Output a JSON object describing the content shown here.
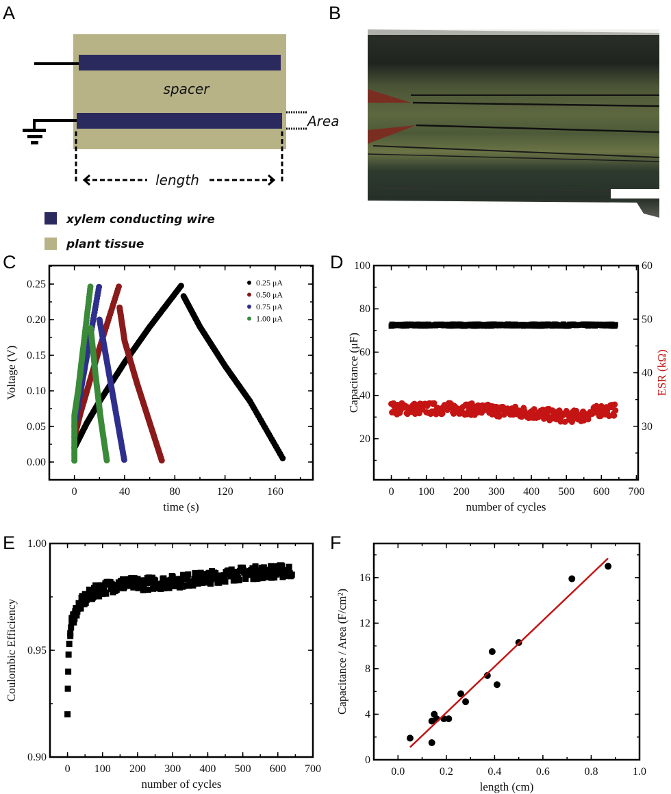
{
  "panels": {
    "A": {
      "label": "A",
      "spacer_label": "spacer",
      "area_label": "Area",
      "length_label": "length",
      "legend": [
        {
          "label": "xylem conducting wire",
          "color": "#2b2a5e"
        },
        {
          "label": "plant tissue",
          "color": "#b7b387"
        }
      ]
    },
    "B": {
      "label": "B",
      "scale_bar_color": "#ffffff"
    },
    "C": {
      "label": "C"
    },
    "D": {
      "label": "D"
    },
    "E": {
      "label": "E"
    },
    "F": {
      "label": "F"
    }
  },
  "chart_data": [
    {
      "panel": "C",
      "type": "scatter",
      "xlabel": "time (s)",
      "ylabel": "Voltage (V)",
      "xlim": [
        -20,
        190
      ],
      "ylim": [
        -0.025,
        0.276
      ],
      "xticks": [
        0,
        40,
        80,
        120,
        160
      ],
      "xtick_labels": [
        "0",
        "40",
        "80",
        "120",
        "160"
      ],
      "yticks": [
        0,
        0.05,
        0.1,
        0.15,
        0.2,
        0.25
      ],
      "ytick_labels": [
        "0.00",
        "0.05",
        "0.10",
        "0.15",
        "0.20",
        "0.25"
      ],
      "grid": false,
      "legend_position": "top-right",
      "series": [
        {
          "name": "0.25 μA",
          "color": "#000000",
          "charge": [
            [
              0,
              0.02
            ],
            [
              10,
              0.055
            ],
            [
              20,
              0.085
            ],
            [
              40,
              0.14
            ],
            [
              60,
              0.19
            ],
            [
              86,
              0.25
            ]
          ],
          "discharge": [
            [
              87,
              0.233
            ],
            [
              100,
              0.19
            ],
            [
              120,
              0.135
            ],
            [
              140,
              0.085
            ],
            [
              167,
              0.002
            ]
          ]
        },
        {
          "name": "0.50 μA",
          "color": "#8b1a1a",
          "charge": [
            [
              0,
              0.035
            ],
            [
              5,
              0.07
            ],
            [
              10,
              0.1
            ],
            [
              20,
              0.16
            ],
            [
              36,
              0.25
            ]
          ],
          "discharge": [
            [
              36,
              0.217
            ],
            [
              40,
              0.17
            ],
            [
              50,
              0.11
            ],
            [
              60,
              0.055
            ],
            [
              70,
              0.0
            ]
          ]
        },
        {
          "name": "0.75 μA",
          "color": "#2e2e8c",
          "charge": [
            [
              0,
              0.05
            ],
            [
              5,
              0.1
            ],
            [
              10,
              0.15
            ],
            [
              20,
              0.25
            ]
          ],
          "discharge": [
            [
              20,
              0.2
            ],
            [
              25,
              0.15
            ],
            [
              32,
              0.08
            ],
            [
              40,
              0.0
            ]
          ]
        },
        {
          "name": "1.00 μA",
          "color": "#3a8a3a",
          "charge": [
            [
              0,
              0.002
            ],
            [
              0,
              0.065
            ],
            [
              3,
              0.1
            ],
            [
              7,
              0.16
            ],
            [
              13,
              0.25
            ]
          ],
          "discharge": [
            [
              13,
              0.188
            ],
            [
              17,
              0.12
            ],
            [
              21,
              0.06
            ],
            [
              26,
              0.0
            ]
          ]
        }
      ]
    },
    {
      "panel": "D",
      "type": "scatter",
      "xlabel": "number of cycles",
      "ylabel": "Capacitance (μF)",
      "ylabel_right": "ESR (kΩ)",
      "xlim": [
        -50,
        705
      ],
      "ylim": [
        1,
        100
      ],
      "ylim_right": [
        20,
        60
      ],
      "xticks": [
        0,
        100,
        200,
        300,
        400,
        500,
        600,
        700
      ],
      "xtick_labels": [
        "0",
        "100",
        "200",
        "300",
        "400",
        "500",
        "600",
        "700"
      ],
      "yticks": [
        20,
        40,
        60,
        80,
        100
      ],
      "ytick_labels": [
        "20",
        "40",
        "60",
        "80",
        "100"
      ],
      "yticks_right": [
        30,
        40,
        50,
        60
      ],
      "ytick_labels_right": [
        "30",
        "40",
        "50",
        "60"
      ],
      "grid": false,
      "series": [
        {
          "name": "Capacitance",
          "axis": "left",
          "color": "#000000",
          "x": [
            0,
            100,
            200,
            300,
            400,
            500,
            600,
            640
          ],
          "y": [
            72.5,
            72.5,
            72.5,
            72.5,
            72.5,
            72.5,
            72.5,
            72.5
          ]
        },
        {
          "name": "ESR",
          "axis": "right",
          "color": "#c41414",
          "x": [
            0,
            100,
            200,
            300,
            400,
            500,
            550,
            600,
            640
          ],
          "y": [
            33.3,
            33.3,
            33.3,
            32.9,
            32.5,
            31.8,
            32.0,
            33.0,
            33.0
          ]
        }
      ]
    },
    {
      "panel": "E",
      "type": "scatter",
      "xlabel": "number of cycles",
      "ylabel": "Coulombic Efficiency",
      "xlim": [
        -50,
        700
      ],
      "ylim": [
        0.9,
        1.0
      ],
      "xticks": [
        0,
        100,
        200,
        300,
        400,
        500,
        600,
        700
      ],
      "xtick_labels": [
        "0",
        "100",
        "200",
        "300",
        "400",
        "500",
        "600",
        "700"
      ],
      "yticks": [
        0.9,
        0.95,
        1.0
      ],
      "ytick_labels": [
        "0.90",
        "0.95",
        "1.00"
      ],
      "grid": false,
      "series": [
        {
          "color": "#000000",
          "x": [
            0,
            1,
            2,
            3,
            5,
            8,
            12,
            20,
            30,
            50,
            75,
            100,
            150,
            200,
            300,
            400,
            500,
            600,
            640
          ],
          "y": [
            0.92,
            0.932,
            0.94,
            0.948,
            0.953,
            0.958,
            0.963,
            0.967,
            0.97,
            0.974,
            0.977,
            0.979,
            0.981,
            0.981,
            0.982,
            0.984,
            0.986,
            0.987,
            0.987
          ]
        }
      ]
    },
    {
      "panel": "F",
      "type": "scatter",
      "xlabel": "length (cm)",
      "ylabel": "Capacitance / Area (F/cm²)",
      "xlim": [
        -0.1,
        1.0
      ],
      "ylim": [
        0,
        19
      ],
      "xticks": [
        0,
        0.2,
        0.4,
        0.6,
        0.8,
        1.0
      ],
      "xtick_labels": [
        "0.0",
        "0.2",
        "0.4",
        "0.6",
        "0.8",
        "1.0"
      ],
      "yticks": [
        0,
        4,
        8,
        12,
        16
      ],
      "ytick_labels": [
        "0",
        "4",
        "8",
        "12",
        "16"
      ],
      "grid": false,
      "series": [
        {
          "color": "#000000",
          "x": [
            0.05,
            0.14,
            0.14,
            0.15,
            0.16,
            0.19,
            0.21,
            0.26,
            0.28,
            0.37,
            0.39,
            0.41,
            0.5,
            0.72,
            0.87
          ],
          "y": [
            1.9,
            1.5,
            3.4,
            4.0,
            3.6,
            3.6,
            3.6,
            5.8,
            5.1,
            7.4,
            9.5,
            6.6,
            10.3,
            15.9,
            17.0
          ]
        }
      ],
      "fit_line": {
        "color": "#c41414",
        "x": [
          0.05,
          0.87
        ],
        "y": [
          1.1,
          17.7
        ]
      }
    }
  ]
}
